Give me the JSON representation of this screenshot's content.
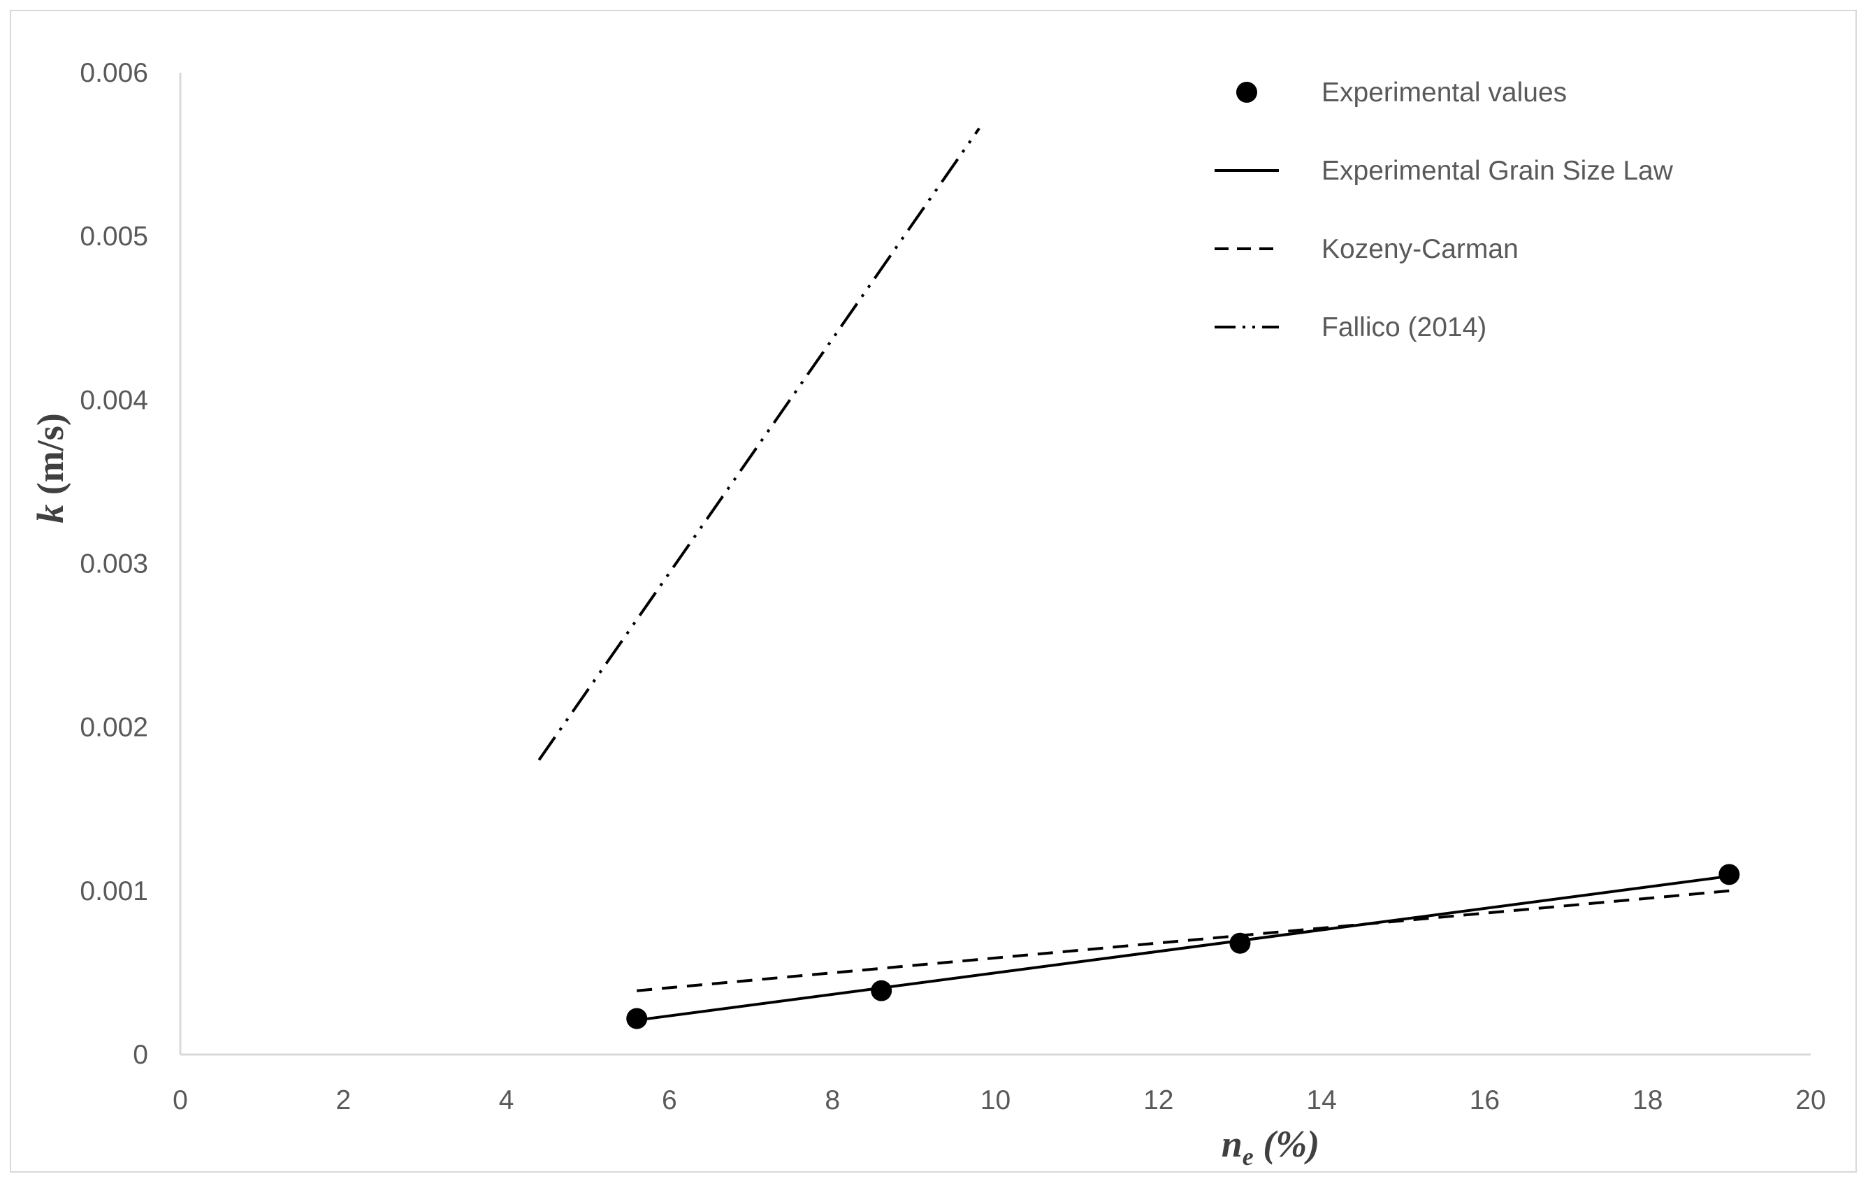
{
  "chart_data": {
    "type": "scatter",
    "x_axis": {
      "label_main": "n",
      "label_sub": "e",
      "label_rest": " (%)",
      "min": 0,
      "max": 20,
      "ticks": [
        "0",
        "2",
        "4",
        "6",
        "8",
        "10",
        "12",
        "14",
        "16",
        "18",
        "20"
      ]
    },
    "y_axis": {
      "label_main": "k",
      "label_rest": " (m/s)",
      "min": 0,
      "max": 0.006,
      "ticks": [
        "0",
        "0.001",
        "0.002",
        "0.003",
        "0.004",
        "0.005",
        "0.006"
      ]
    },
    "grid": false,
    "legend_position": "top-right",
    "series": [
      {
        "name": "Experimental values",
        "kind": "markers",
        "color": "#000000",
        "x": [
          5.6,
          8.6,
          13.0,
          19.0
        ],
        "y": [
          0.00022,
          0.00039,
          0.00068,
          0.0011
        ]
      },
      {
        "name": "Experimental Grain Size Law",
        "kind": "line",
        "style": "solid",
        "color": "#000000",
        "x": [
          5.6,
          19.0
        ],
        "y": [
          0.00021,
          0.00109
        ]
      },
      {
        "name": "Kozeny-Carman",
        "kind": "line",
        "style": "dashed",
        "color": "#000000",
        "x": [
          5.6,
          19.0
        ],
        "y": [
          0.00039,
          0.001
        ]
      },
      {
        "name": "Fallico (2014)",
        "kind": "line",
        "style": "dash-dot-dot",
        "color": "#000000",
        "x": [
          4.4,
          9.8
        ],
        "y": [
          0.0018,
          0.00566
        ]
      }
    ]
  }
}
